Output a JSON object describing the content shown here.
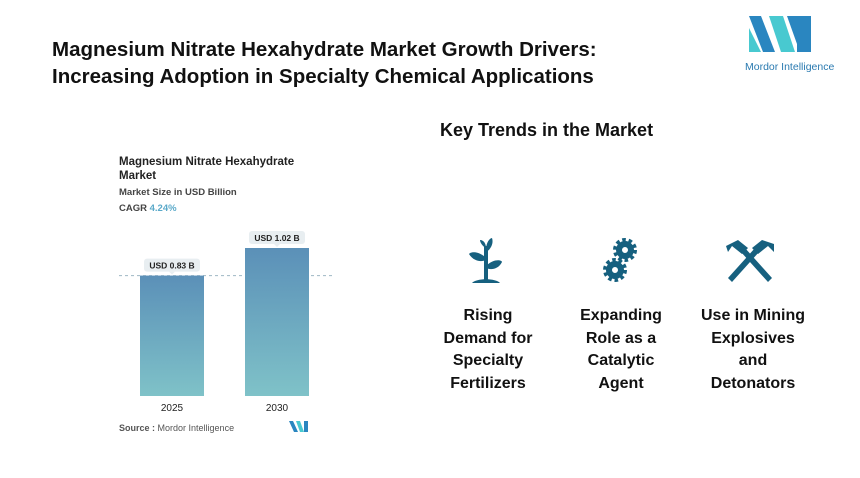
{
  "header": {
    "title_line1": "Magnesium Nitrate Hexahydrate Market Growth Drivers:",
    "title_line2": "Increasing Adoption in Specialty Chemical Applications",
    "logo_text": "Mordor Intelligence"
  },
  "chart_data": {
    "type": "bar",
    "title": "Magnesium Nitrate Hexahydrate Market",
    "subtitle": "Market Size in USD Billion",
    "cagr_label": "CAGR",
    "cagr_value": "4.24%",
    "categories": [
      "2025",
      "2030"
    ],
    "values": [
      0.83,
      1.02
    ],
    "data_labels": [
      "USD 0.83 B",
      "USD 1.02 B"
    ],
    "ylim": [
      0,
      1.02
    ],
    "grid": false,
    "colors": {
      "top": "#5b90b8",
      "bottom": "#7fc2c8",
      "cagr": "#5aa9c9"
    }
  },
  "source": {
    "label": "Source :",
    "value": "Mordor Intelligence"
  },
  "trends": {
    "heading": "Key Trends in the Market",
    "items": [
      {
        "icon": "plant-icon",
        "label_lines": [
          "Rising",
          "Demand for",
          "Specialty",
          "Fertilizers"
        ]
      },
      {
        "icon": "gears-icon",
        "label_lines": [
          "Expanding",
          "Role as a",
          "Catalytic",
          "Agent"
        ]
      },
      {
        "icon": "hammers-icon",
        "label_lines": [
          "Use in Mining",
          "Explosives",
          "and",
          "Detonators"
        ]
      }
    ],
    "icon_color": "#16607f"
  }
}
